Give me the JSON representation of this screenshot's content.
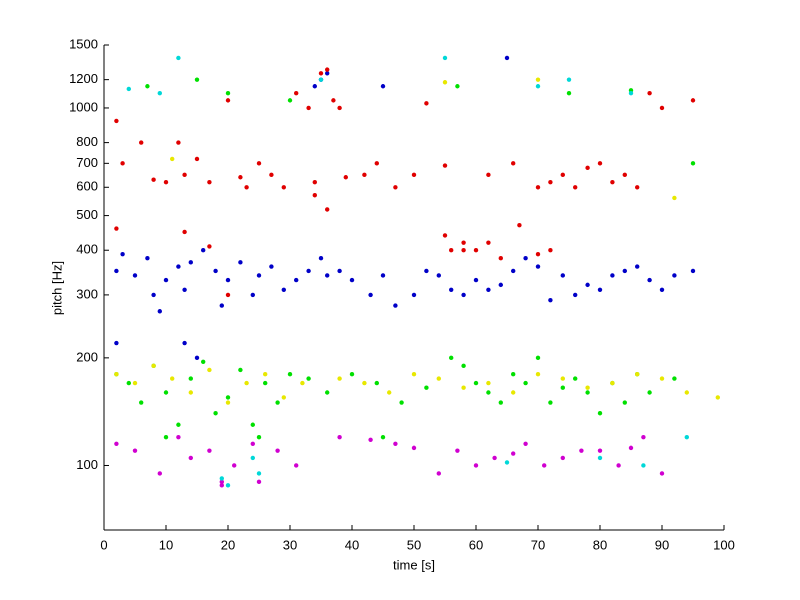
{
  "chart_data": {
    "type": "scatter",
    "xlabel": "time [s]",
    "ylabel": "pitch [Hz]",
    "xlim": [
      0,
      100
    ],
    "xticks": [
      0,
      10,
      20,
      30,
      40,
      50,
      60,
      70,
      80,
      90,
      100
    ],
    "ylim": [
      66,
      1500
    ],
    "yticks": [
      100,
      200,
      300,
      400,
      500,
      600,
      700,
      800,
      1000,
      1200,
      1500
    ],
    "yscale": "log",
    "grid": false,
    "series": [
      {
        "color": "#0000c8",
        "x": [
          2,
          3,
          5,
          7,
          8,
          9,
          10,
          12,
          13,
          14,
          16,
          18,
          19,
          20,
          22,
          24,
          25,
          27,
          29,
          31,
          33,
          35,
          36,
          38,
          40,
          43,
          45,
          47,
          50,
          52,
          54,
          56,
          58,
          60,
          62,
          64,
          66,
          68,
          70,
          72,
          74,
          76,
          78,
          80,
          82,
          84,
          86,
          88,
          90,
          92,
          95,
          35,
          36,
          34,
          13,
          2,
          15,
          65,
          45
        ],
        "values": [
          350,
          390,
          340,
          380,
          300,
          270,
          330,
          360,
          310,
          370,
          400,
          350,
          280,
          330,
          370,
          300,
          340,
          360,
          310,
          330,
          350,
          380,
          340,
          350,
          330,
          300,
          340,
          280,
          300,
          350,
          340,
          310,
          300,
          330,
          310,
          320,
          350,
          380,
          360,
          290,
          340,
          300,
          320,
          310,
          340,
          350,
          360,
          330,
          310,
          340,
          350,
          1200,
          1250,
          1150,
          220,
          220,
          200,
          1380,
          1150
        ]
      },
      {
        "color": "#e00000",
        "x": [
          2,
          3,
          6,
          8,
          10,
          12,
          13,
          15,
          17,
          20,
          22,
          23,
          25,
          27,
          29,
          31,
          33,
          34,
          35,
          36,
          37,
          39,
          42,
          44,
          47,
          50,
          52,
          55,
          56,
          58,
          60,
          62,
          64,
          66,
          67,
          70,
          72,
          74,
          76,
          78,
          80,
          82,
          84,
          86,
          88,
          90,
          95,
          2,
          13,
          17,
          55,
          58,
          62,
          70,
          72,
          20,
          34,
          36,
          38
        ],
        "values": [
          920,
          700,
          800,
          630,
          620,
          800,
          650,
          720,
          620,
          300,
          640,
          600,
          700,
          650,
          600,
          1100,
          1000,
          620,
          1250,
          1280,
          1050,
          640,
          650,
          700,
          600,
          650,
          1030,
          690,
          400,
          420,
          400,
          650,
          380,
          700,
          470,
          600,
          620,
          650,
          600,
          680,
          700,
          620,
          650,
          600,
          1100,
          1000,
          1050,
          460,
          450,
          410,
          440,
          400,
          420,
          390,
          400,
          1050,
          570,
          520,
          1000
        ]
      },
      {
        "color": "#00e000",
        "x": [
          2,
          4,
          6,
          8,
          10,
          12,
          14,
          16,
          18,
          20,
          22,
          24,
          26,
          28,
          30,
          33,
          36,
          40,
          44,
          48,
          52,
          56,
          58,
          60,
          62,
          64,
          66,
          68,
          70,
          72,
          74,
          76,
          78,
          80,
          82,
          84,
          86,
          88,
          92,
          7,
          15,
          20,
          30,
          57,
          75,
          85,
          95,
          10,
          25,
          45
        ],
        "values": [
          180,
          170,
          150,
          190,
          160,
          130,
          175,
          195,
          140,
          155,
          185,
          130,
          170,
          150,
          180,
          175,
          160,
          180,
          170,
          150,
          165,
          200,
          190,
          170,
          160,
          150,
          180,
          170,
          200,
          150,
          165,
          175,
          160,
          140,
          170,
          150,
          180,
          160,
          175,
          1150,
          1200,
          1100,
          1050,
          1150,
          1100,
          1120,
          700,
          120,
          120,
          120
        ]
      },
      {
        "color": "#e8e800",
        "x": [
          2,
          5,
          8,
          11,
          14,
          17,
          20,
          23,
          26,
          29,
          32,
          38,
          42,
          46,
          50,
          54,
          58,
          62,
          66,
          70,
          74,
          78,
          82,
          86,
          90,
          94,
          99,
          11,
          55,
          70,
          92
        ],
        "values": [
          180,
          170,
          190,
          175,
          160,
          185,
          150,
          170,
          180,
          155,
          170,
          175,
          170,
          160,
          180,
          175,
          165,
          170,
          160,
          180,
          175,
          165,
          170,
          180,
          175,
          160,
          155,
          720,
          1180,
          1200,
          560
        ]
      },
      {
        "color": "#d000d0",
        "x": [
          2,
          5,
          9,
          12,
          14,
          17,
          19,
          21,
          24,
          28,
          31,
          38,
          43,
          47,
          50,
          54,
          57,
          60,
          63,
          66,
          68,
          71,
          74,
          77,
          80,
          83,
          85,
          87,
          90,
          19,
          25
        ],
        "values": [
          115,
          110,
          95,
          120,
          105,
          110,
          90,
          100,
          115,
          110,
          100,
          120,
          118,
          115,
          112,
          95,
          110,
          100,
          105,
          108,
          115,
          100,
          105,
          110,
          110,
          100,
          112,
          120,
          95,
          88,
          90
        ]
      },
      {
        "color": "#00d8d8",
        "x": [
          4,
          9,
          12,
          19,
          24,
          35,
          55,
          65,
          70,
          75,
          80,
          85,
          94,
          20,
          87,
          25
        ],
        "values": [
          1130,
          1100,
          1380,
          92,
          105,
          1200,
          1380,
          102,
          1150,
          1200,
          105,
          1100,
          120,
          88,
          100,
          95
        ]
      }
    ]
  }
}
